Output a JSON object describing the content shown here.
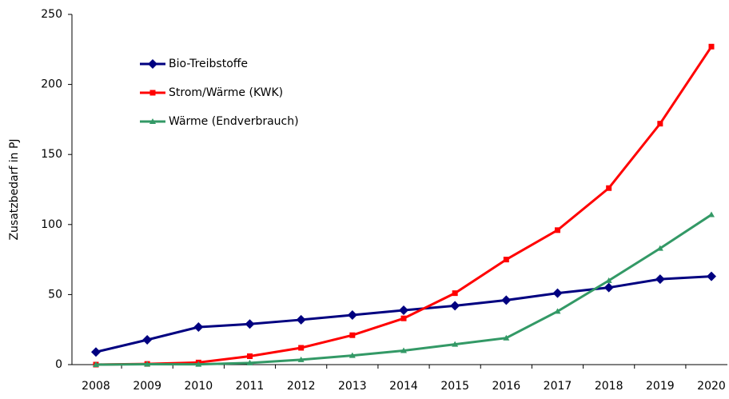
{
  "chart_data": {
    "type": "line",
    "y_label": "Zusatzbedarf in PJ",
    "categories": [
      "2008",
      "2009",
      "2010",
      "2011",
      "2012",
      "2013",
      "2014",
      "2015",
      "2016",
      "2017",
      "2018",
      "2019",
      "2020"
    ],
    "series": [
      {
        "name": "Bio-Treibstoffe",
        "color": "#000080",
        "marker": "diamond",
        "values": [
          9,
          17.7,
          26.8,
          29,
          32,
          35.4,
          38.8,
          42,
          46,
          51,
          55,
          61,
          63
        ]
      },
      {
        "name": "Strom/Wärme (KWK)",
        "color": "#ff0000",
        "marker": "square",
        "values": [
          0,
          0.5,
          1.5,
          6,
          12,
          21,
          33,
          51,
          75,
          96,
          126,
          172,
          227
        ]
      },
      {
        "name": "Wärme (Endverbrauch)",
        "color": "#339966",
        "marker": "triangle",
        "values": [
          0,
          0.3,
          0.2,
          1.2,
          3.5,
          6.5,
          10,
          14.5,
          19,
          38,
          60,
          83,
          107
        ]
      }
    ],
    "ylim": [
      0,
      250
    ],
    "yticks": [
      0,
      50,
      100,
      150,
      200,
      250
    ],
    "grid": false,
    "legend": "upper left"
  }
}
